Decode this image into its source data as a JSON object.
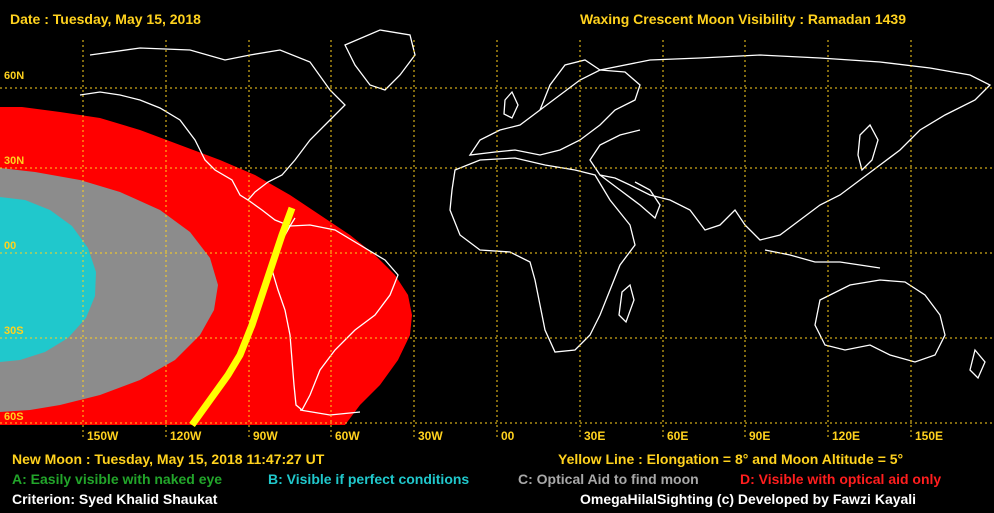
{
  "header": {
    "date": "Date : Tuesday, May 15, 2018",
    "title": "Waxing Crescent Moon Visibility : Ramadan 1439"
  },
  "map": {
    "lat_labels": [
      "60N",
      "30N",
      "00",
      "30S",
      "60S"
    ],
    "lon_labels": [
      "150W",
      "120W",
      "90W",
      "60W",
      "30W",
      "00",
      "30E",
      "60E",
      "90E",
      "120E",
      "150E"
    ],
    "colors": {
      "zone_a": "#22a52a",
      "zone_b": "#20c8cc",
      "zone_c": "#8c8c8c",
      "zone_d": "#ff0000",
      "yellow_line": "#ffff00",
      "grid": "#ffd21e",
      "coast": "#ffffff"
    }
  },
  "footer": {
    "new_moon": "New Moon : Tuesday, May 15, 2018  11:47:27  UT",
    "yellow_line": "Yellow Line : Elongation = 8° and Moon Altitude = 5°",
    "legend_a": "A: Easily visible with naked eye",
    "legend_b": "B: Visible if perfect conditions",
    "legend_c": "C: Optical Aid to find moon",
    "legend_d": "D: Visible with optical aid only",
    "criterion": "Criterion: Syed Khalid Shaukat",
    "credit": "OmegaHilalSighting  (c)  Developed by Fawzi Kayali"
  }
}
